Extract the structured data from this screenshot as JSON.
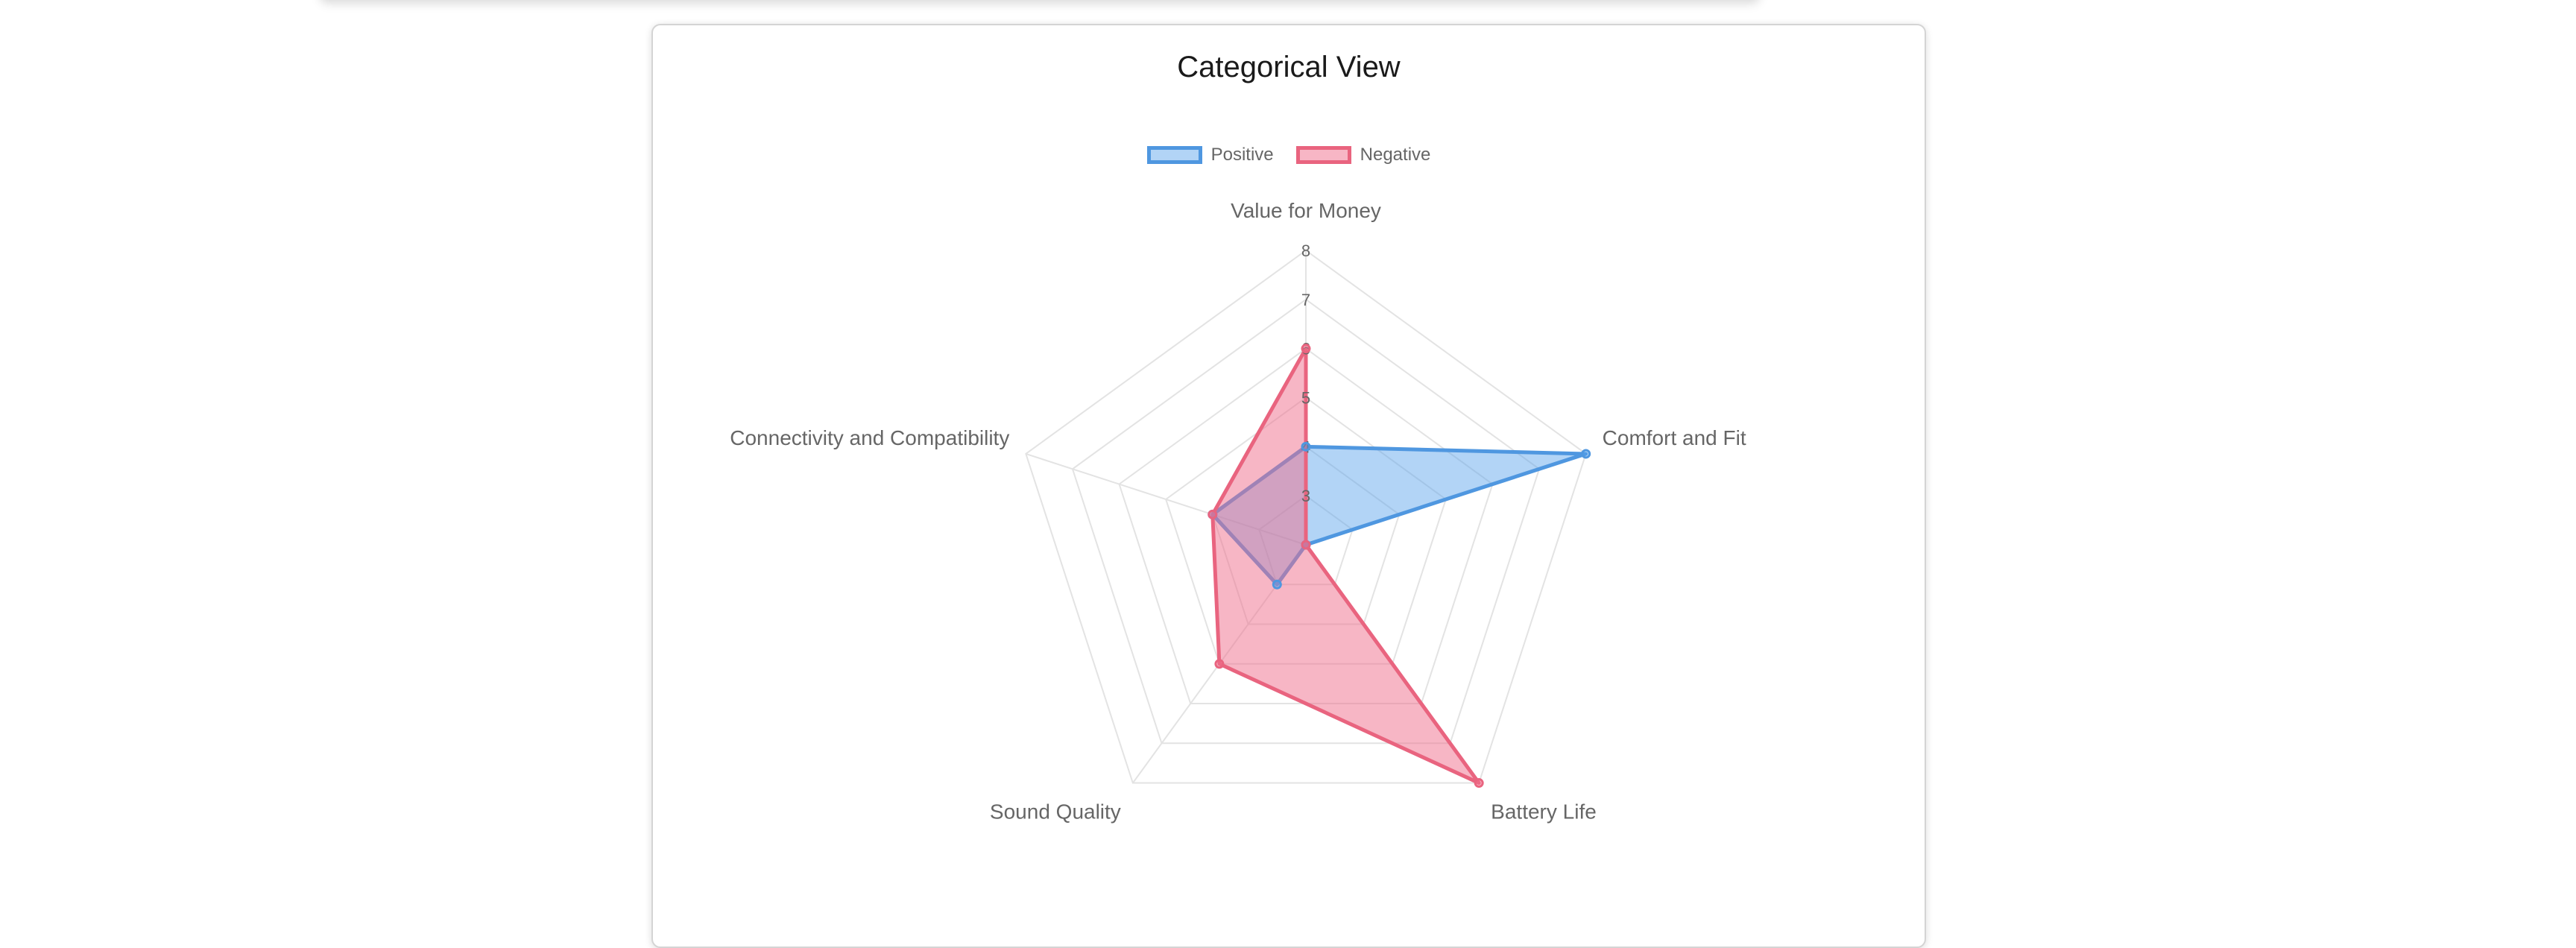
{
  "chart_data": {
    "type": "radar",
    "title": "Categorical View",
    "labels": [
      "Value for Money",
      "Comfort and Fit",
      "Battery Life",
      "Sound Quality",
      "Connectivity and Compatibility"
    ],
    "series": [
      {
        "name": "Positive",
        "values": [
          4,
          8,
          2,
          3,
          4
        ],
        "border_color": "#4f97e0",
        "fill_color": "rgba(85,160,235,0.45)"
      },
      {
        "name": "Negative",
        "values": [
          6,
          2,
          8,
          5,
          4
        ],
        "border_color": "#e9647f",
        "fill_color": "rgba(240,110,140,0.5)"
      }
    ],
    "r_ticks": [
      "3",
      "4",
      "5",
      "6",
      "7",
      "8"
    ],
    "r_range": [
      2,
      8
    ],
    "legend_position": "top",
    "grid": true
  }
}
